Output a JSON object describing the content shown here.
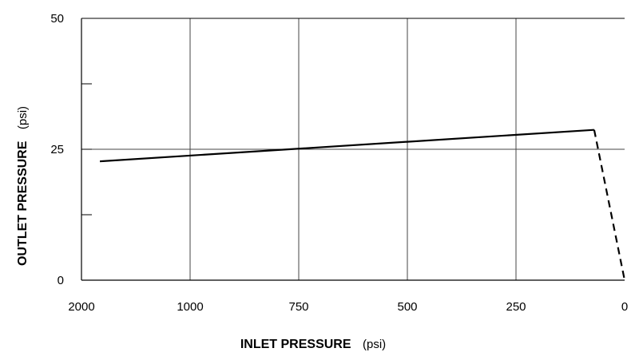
{
  "chart_data": {
    "type": "line",
    "xlabel": "INLET PRESSURE",
    "xlabel_unit": "(psi)",
    "ylabel": "OUTLET PRESSURE",
    "ylabel_unit": "(psi)",
    "x_axis_order": "descending",
    "x_ticks": [
      "2000",
      "1000",
      "750",
      "500",
      "250",
      "0"
    ],
    "y_ticks": [
      "0",
      "25",
      "50"
    ],
    "y_minor_ticks": [
      12.5,
      37.5
    ],
    "ylim": [
      0,
      50
    ],
    "grid": true,
    "series": [
      {
        "style": "solid",
        "points": [
          {
            "x": 1830,
            "y": 22.7
          },
          {
            "x": 70,
            "y": 28.7
          }
        ]
      },
      {
        "style": "dashed",
        "points": [
          {
            "x": 70,
            "y": 28.7
          },
          {
            "x": 0,
            "y": 0
          }
        ]
      }
    ]
  }
}
